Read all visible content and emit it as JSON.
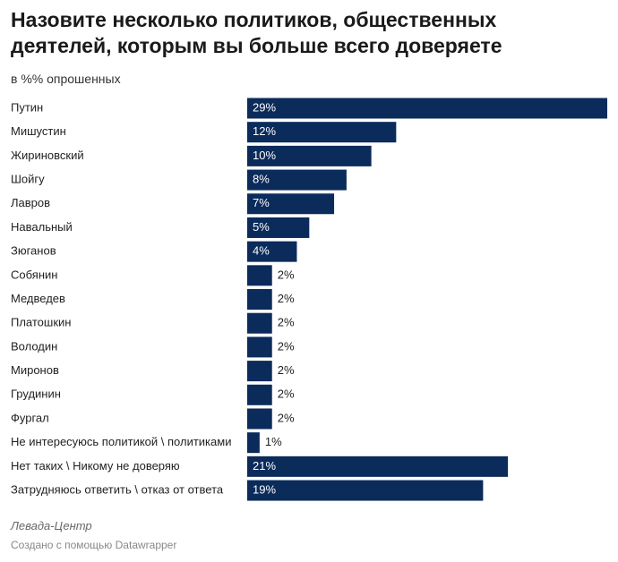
{
  "chart_data": {
    "type": "bar",
    "orientation": "horizontal",
    "title": "Назовите несколько политиков, общественных деятелей, которым вы больше всего доверяете",
    "subtitle": "в %% опрошенных",
    "source": "Левада-Центр",
    "credit": "Создано с помощью Datawrapper",
    "color": "#0b2b5b",
    "categories": [
      "Путин",
      "Мишустин",
      "Жириновский",
      "Шойгу",
      "Лавров",
      "Навальный",
      "Зюганов",
      "Собянин",
      "Медведев",
      "Платошкин",
      "Володин",
      "Миронов",
      "Грудинин",
      "Фургал",
      "Не интересуюсь политикой \\ политиками",
      "Нет таких \\ Никому не доверяю",
      "Затрудняюсь ответить \\ отказ от ответа"
    ],
    "values": [
      29,
      12,
      10,
      8,
      7,
      5,
      4,
      2,
      2,
      2,
      2,
      2,
      2,
      2,
      1,
      21,
      19
    ],
    "value_labels": [
      "29%",
      "12%",
      "10%",
      "8%",
      "7%",
      "5%",
      "4%",
      "2%",
      "2%",
      "2%",
      "2%",
      "2%",
      "2%",
      "2%",
      "1%",
      "21%",
      "19%"
    ]
  }
}
